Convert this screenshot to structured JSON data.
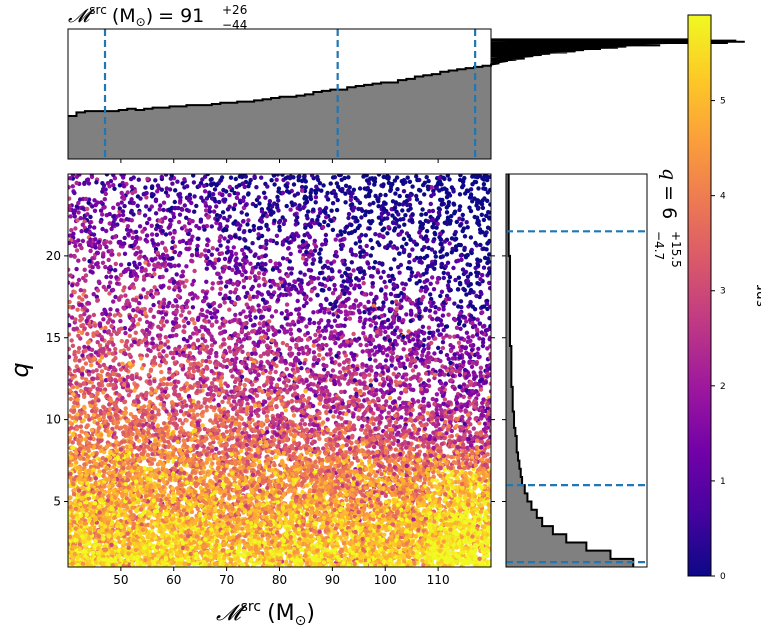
{
  "chart_data": {
    "type": "scatter",
    "subtype": "corner-plot-with-marginal-histograms",
    "title": {
      "var": "𝓜",
      "sup": "src",
      "unit": "(M",
      "unit_sub": "⊙",
      "unit_close": ")",
      "eq": "= 91",
      "plus": "+26",
      "minus": "−44"
    },
    "xlabel": {
      "var": "𝓜",
      "sup": "src",
      "unit": "(M",
      "unit_sub": "⊙",
      "unit_close": ")"
    },
    "ylabel": "q",
    "right_title": {
      "var": "q",
      "eq": "= 6",
      "plus": "+15.5",
      "minus": "−4.7"
    },
    "colorbar": {
      "label": "snr",
      "range": [
        0,
        5.9
      ],
      "ticks": [
        "0",
        "1",
        "2",
        "3",
        "4",
        "5"
      ],
      "colormap": [
        "#0d0887",
        "#46039f",
        "#7201a8",
        "#9c179e",
        "#bd3786",
        "#d8576b",
        "#ed7953",
        "#fb9f3a",
        "#fdca26",
        "#f0f921"
      ]
    },
    "xlim": [
      40,
      120
    ],
    "ylim": [
      1,
      25
    ],
    "xticks": [
      "50",
      "60",
      "70",
      "80",
      "90",
      "100",
      "110"
    ],
    "yticks": [
      "5",
      "10",
      "15",
      "20"
    ],
    "x_hist": {
      "bin_edges_start": 40,
      "bin_width": 1.6,
      "heights": [
        0.36,
        0.39,
        0.4,
        0.4,
        0.4,
        0.4,
        0.41,
        0.42,
        0.41,
        0.42,
        0.43,
        0.43,
        0.44,
        0.44,
        0.45,
        0.45,
        0.45,
        0.46,
        0.47,
        0.47,
        0.48,
        0.48,
        0.49,
        0.5,
        0.51,
        0.52,
        0.52,
        0.53,
        0.54,
        0.56,
        0.57,
        0.58,
        0.58,
        0.6,
        0.61,
        0.62,
        0.63,
        0.64,
        0.64,
        0.66,
        0.67,
        0.69,
        0.7,
        0.71,
        0.73,
        0.74,
        0.75,
        0.76,
        0.77,
        0.78,
        0.79,
        0.8,
        0.82,
        0.83,
        0.84,
        0.86,
        0.87,
        0.88,
        0.89,
        0.89,
        0.9,
        0.91,
        0.92,
        0.92,
        0.93,
        0.93,
        0.94,
        0.95,
        0.96,
        0.96,
        0.95,
        0.97,
        0.98,
        0.97,
        0.99,
        0.99,
        1.0,
        0.99,
        0.97,
        0.99,
        0.98
      ],
      "quantile_lines": [
        47,
        91,
        117
      ]
    },
    "y_hist": {
      "bin_edges_start": 1,
      "bin_width": 0.5,
      "heights": [
        0.95,
        0.78,
        0.6,
        0.45,
        0.35,
        0.27,
        0.23,
        0.19,
        0.16,
        0.14,
        0.12,
        0.11,
        0.1,
        0.09,
        0.08,
        0.08,
        0.07,
        0.06,
        0.06,
        0.05,
        0.05,
        0.05,
        0.04,
        0.04,
        0.04,
        0.04,
        0.04,
        0.03,
        0.03,
        0.03,
        0.03,
        0.03,
        0.03,
        0.03,
        0.03,
        0.03,
        0.03,
        0.03,
        0.02,
        0.02,
        0.02,
        0.02,
        0.02,
        0.02,
        0.02,
        0.02,
        0.02,
        0.02
      ],
      "quantile_lines": [
        1.3,
        6,
        21.5
      ]
    },
    "scatter_trend": "high snr (yellow) concentrated at low q and low M; low snr (dark blue) at high q and high M; points densely fill the axes"
  }
}
